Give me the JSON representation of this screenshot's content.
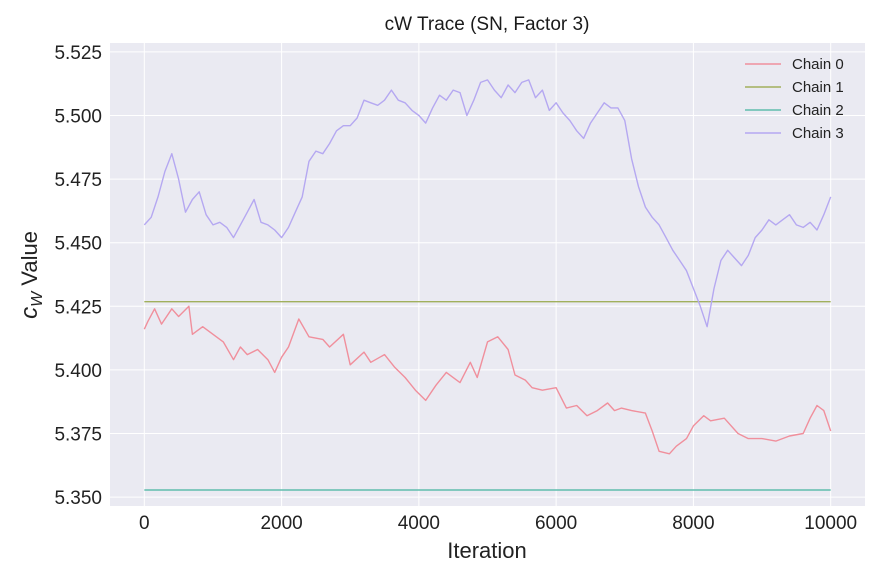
{
  "chart_data": {
    "type": "line",
    "title": "cW Trace (SN, Factor 3)",
    "xlabel": "Iteration",
    "ylabel_var": "c",
    "ylabel_sub": "W",
    "ylabel_rest": " Value",
    "xlim": [
      -500,
      10500
    ],
    "ylim": [
      5.3465,
      5.5285
    ],
    "xticks": [
      0,
      2000,
      4000,
      6000,
      8000,
      10000
    ],
    "xtick_labels": [
      "0",
      "2000",
      "4000",
      "6000",
      "8000",
      "10000"
    ],
    "yticks": [
      5.35,
      5.375,
      5.4,
      5.425,
      5.45,
      5.475,
      5.5,
      5.525
    ],
    "ytick_labels": [
      "5.350",
      "5.375",
      "5.400",
      "5.425",
      "5.450",
      "5.475",
      "5.500",
      "5.525"
    ],
    "grid": true,
    "legend_position": "top-right",
    "background": "#eaeaf2",
    "series": [
      {
        "name": "Chain 0",
        "color": "#f08f9c",
        "x": [
          0,
          50,
          150,
          250,
          400,
          500,
          650,
          700,
          850,
          1000,
          1150,
          1300,
          1400,
          1500,
          1650,
          1800,
          1900,
          2000,
          2100,
          2250,
          2400,
          2600,
          2700,
          2900,
          3000,
          3200,
          3300,
          3500,
          3650,
          3800,
          3950,
          4100,
          4250,
          4400,
          4600,
          4750,
          4850,
          5000,
          5150,
          5300,
          5400,
          5550,
          5650,
          5800,
          6000,
          6150,
          6300,
          6450,
          6600,
          6750,
          6850,
          6950,
          7100,
          7300,
          7400,
          7500,
          7650,
          7750,
          7900,
          8000,
          8150,
          8250,
          8450,
          8650,
          8800,
          9000,
          9200,
          9400,
          9600,
          9700,
          9800,
          9900,
          10000
        ],
        "y": [
          5.416,
          5.419,
          5.424,
          5.418,
          5.424,
          5.421,
          5.425,
          5.414,
          5.417,
          5.414,
          5.411,
          5.404,
          5.409,
          5.406,
          5.408,
          5.404,
          5.399,
          5.405,
          5.409,
          5.42,
          5.413,
          5.412,
          5.409,
          5.414,
          5.402,
          5.407,
          5.403,
          5.406,
          5.401,
          5.397,
          5.392,
          5.388,
          5.394,
          5.399,
          5.395,
          5.403,
          5.397,
          5.411,
          5.413,
          5.408,
          5.398,
          5.396,
          5.393,
          5.392,
          5.393,
          5.385,
          5.386,
          5.382,
          5.384,
          5.387,
          5.384,
          5.385,
          5.384,
          5.383,
          5.376,
          5.368,
          5.367,
          5.37,
          5.373,
          5.378,
          5.382,
          5.38,
          5.381,
          5.375,
          5.373,
          5.373,
          5.372,
          5.374,
          5.375,
          5.381,
          5.386,
          5.384,
          5.376
        ]
      },
      {
        "name": "Chain 1",
        "color": "#a1b05d",
        "x": [
          0,
          10000
        ],
        "y": [
          5.4268,
          5.4268
        ]
      },
      {
        "name": "Chain 2",
        "color": "#5fbcad",
        "x": [
          0,
          10000
        ],
        "y": [
          5.3528,
          5.3528
        ]
      },
      {
        "name": "Chain 3",
        "color": "#b5a8f1",
        "x": [
          0,
          100,
          200,
          300,
          400,
          500,
          600,
          700,
          800,
          900,
          1000,
          1100,
          1200,
          1300,
          1400,
          1500,
          1600,
          1700,
          1800,
          1900,
          2000,
          2100,
          2200,
          2300,
          2400,
          2500,
          2600,
          2700,
          2800,
          2900,
          3000,
          3100,
          3200,
          3300,
          3400,
          3500,
          3600,
          3700,
          3800,
          3900,
          4000,
          4100,
          4200,
          4300,
          4400,
          4500,
          4600,
          4700,
          4800,
          4900,
          5000,
          5100,
          5200,
          5300,
          5400,
          5500,
          5600,
          5700,
          5800,
          5900,
          6000,
          6100,
          6200,
          6300,
          6400,
          6500,
          6600,
          6700,
          6800,
          6900,
          7000,
          7100,
          7200,
          7300,
          7400,
          7500,
          7600,
          7700,
          7800,
          7900,
          8000,
          8100,
          8200,
          8300,
          8400,
          8500,
          8600,
          8700,
          8800,
          8900,
          9000,
          9100,
          9200,
          9300,
          9400,
          9500,
          9600,
          9700,
          9800,
          9900,
          10000
        ],
        "y": [
          5.457,
          5.46,
          5.468,
          5.478,
          5.485,
          5.475,
          5.462,
          5.467,
          5.47,
          5.461,
          5.457,
          5.458,
          5.456,
          5.452,
          5.457,
          5.462,
          5.467,
          5.458,
          5.457,
          5.455,
          5.452,
          5.456,
          5.462,
          5.468,
          5.482,
          5.486,
          5.485,
          5.489,
          5.494,
          5.496,
          5.496,
          5.499,
          5.506,
          5.505,
          5.504,
          5.506,
          5.51,
          5.506,
          5.505,
          5.502,
          5.5,
          5.497,
          5.503,
          5.508,
          5.506,
          5.51,
          5.509,
          5.5,
          5.506,
          5.513,
          5.514,
          5.51,
          5.507,
          5.512,
          5.509,
          5.513,
          5.514,
          5.507,
          5.51,
          5.502,
          5.505,
          5.501,
          5.498,
          5.494,
          5.491,
          5.497,
          5.501,
          5.505,
          5.503,
          5.503,
          5.498,
          5.483,
          5.472,
          5.464,
          5.46,
          5.457,
          5.452,
          5.447,
          5.443,
          5.439,
          5.432,
          5.425,
          5.417,
          5.432,
          5.443,
          5.447,
          5.444,
          5.441,
          5.445,
          5.452,
          5.455,
          5.459,
          5.457,
          5.459,
          5.461,
          5.457,
          5.456,
          5.458,
          5.455,
          5.461,
          5.468
        ]
      }
    ]
  }
}
